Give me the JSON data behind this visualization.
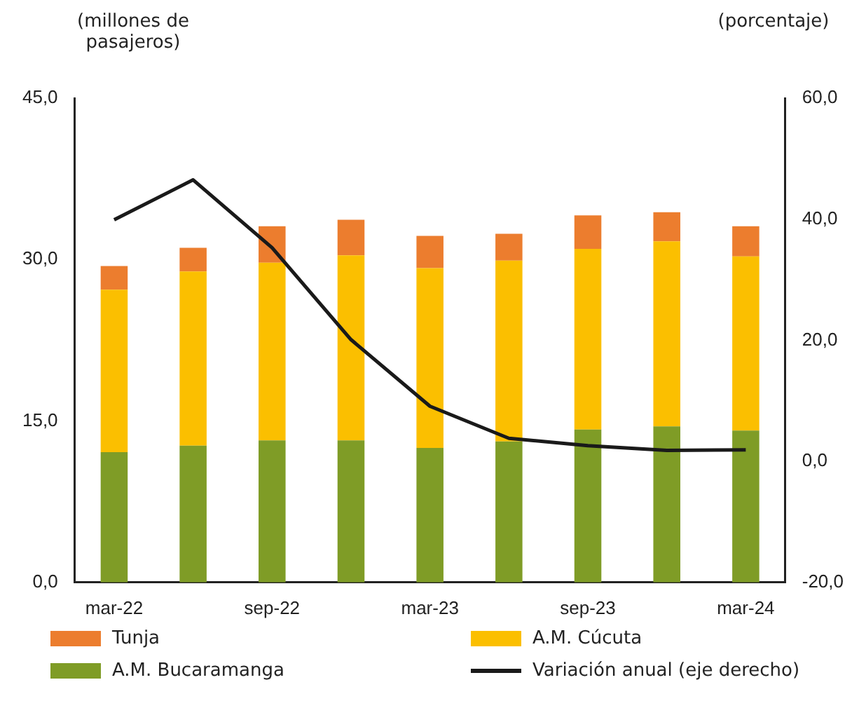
{
  "chart_data": {
    "type": "bar",
    "stacked": true,
    "ylabel": "(millones de pasajeros)",
    "y2label": "(porcentaje)",
    "categories": [
      "mar-22",
      null,
      "sep-22",
      null,
      "mar-23",
      null,
      "sep-23",
      null,
      "mar-24"
    ],
    "series": [
      {
        "name": "A.M. Bucaramanga",
        "color": "#7f9c26",
        "values": [
          12.1,
          12.7,
          13.2,
          13.2,
          12.5,
          13.1,
          14.2,
          14.5,
          14.1
        ]
      },
      {
        "name": "A.M. Cúcuta",
        "color": "#fbbf00",
        "values": [
          15.1,
          16.2,
          16.5,
          17.2,
          16.7,
          16.8,
          16.8,
          17.2,
          16.2
        ]
      },
      {
        "name": "Tunja",
        "color": "#ec7d2e",
        "values": [
          2.2,
          2.2,
          3.4,
          3.3,
          3.0,
          2.5,
          3.1,
          2.7,
          2.8
        ]
      },
      {
        "name": "Variación anual (eje derecho)",
        "type": "line",
        "axis": "y2",
        "color": "#1a1a1a",
        "values": [
          39.9,
          46.5,
          35.3,
          20.1,
          9.1,
          3.8,
          2.6,
          1.8,
          1.9
        ]
      }
    ],
    "ylim": [
      0,
      45
    ],
    "yticks": [
      {
        "value": 0,
        "label": "0,0"
      },
      {
        "value": 15,
        "label": "15,0"
      },
      {
        "value": 30,
        "label": "30,0"
      },
      {
        "value": 45,
        "label": "45,0"
      }
    ],
    "y2lim": [
      -20,
      60
    ],
    "y2ticks": [
      {
        "value": -20,
        "label": "-20,0"
      },
      {
        "value": 0,
        "label": "0,0"
      },
      {
        "value": 20,
        "label": "20,0"
      },
      {
        "value": 40,
        "label": "40,0"
      },
      {
        "value": 60,
        "label": "60,0"
      }
    ],
    "grid": false,
    "legend": "bottom",
    "marker": "none",
    "line_style": "solid"
  }
}
